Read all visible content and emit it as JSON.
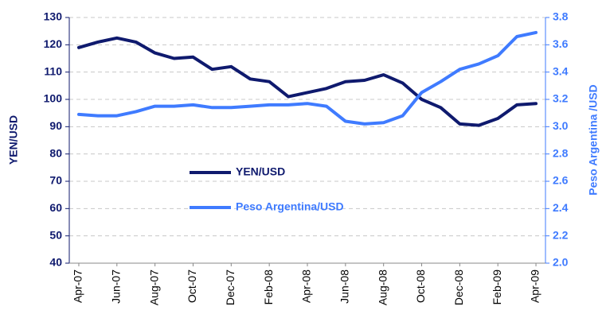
{
  "chart_data": {
    "type": "line",
    "categories": [
      "Apr-07",
      null,
      "Jun-07",
      null,
      "Aug-07",
      null,
      "Oct-07",
      null,
      "Dec-07",
      null,
      "Feb-08",
      null,
      "Apr-08",
      null,
      "Jun-08",
      null,
      "Aug-08",
      null,
      "Oct-08",
      null,
      "Dec-08",
      null,
      "Feb-09",
      null,
      "Apr-09"
    ],
    "series": [
      {
        "name": "YEN/USD",
        "color": "#0f1a6e",
        "axis": "y",
        "values": [
          119,
          121,
          122.5,
          121,
          117,
          115,
          115.5,
          111,
          112,
          107.5,
          106.5,
          101,
          102.5,
          104,
          106.5,
          107,
          109,
          106,
          100,
          97,
          91,
          90.5,
          93,
          98,
          98.5
        ]
      },
      {
        "name": "Peso Argentina/USD",
        "color": "#3f7bff",
        "axis": "y2",
        "values": [
          3.09,
          3.08,
          3.08,
          3.11,
          3.15,
          3.15,
          3.16,
          3.14,
          3.14,
          3.15,
          3.16,
          3.16,
          3.17,
          3.15,
          3.04,
          3.02,
          3.03,
          3.08,
          3.25,
          3.33,
          3.42,
          3.46,
          3.52,
          3.66,
          3.69
        ]
      }
    ],
    "ylabel": "YEN/USD",
    "y2label": "Peso Argentina /USD",
    "ylim": [
      40,
      130
    ],
    "yticks": [
      40,
      50,
      60,
      70,
      80,
      90,
      100,
      110,
      120,
      130
    ],
    "y2lim": [
      2.0,
      3.8
    ],
    "y2ticks": [
      {
        "value": 2,
        "label": "2.0"
      },
      2.2,
      2.4,
      2.6,
      2.8,
      {
        "value": 3,
        "label": "3.0"
      },
      3.2,
      3.4,
      3.6,
      3.8
    ],
    "grid": true
  }
}
